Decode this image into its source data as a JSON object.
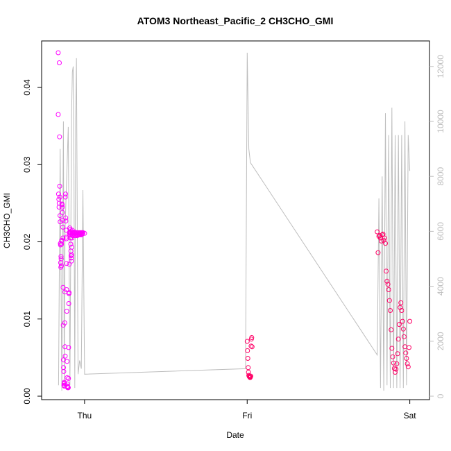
{
  "chart_data": {
    "type": "scatter",
    "title": "ATOM3 Northeast_Pacific_2 CH3CHO_GMI",
    "xlabel": "Date",
    "ylabel": "CH3CHO_GMI",
    "x_ticks": [
      {
        "label": "Thu",
        "value": 1.0
      },
      {
        "label": "Fri",
        "value": 2.0
      },
      {
        "label": "Sat",
        "value": 3.0
      }
    ],
    "xlim": [
      0.8,
      3.04
    ],
    "ylim": [
      0,
      0.0445
    ],
    "y_ticks": [
      "0.00",
      "0.01",
      "0.02",
      "0.03",
      "0.04"
    ],
    "y2lim": [
      0,
      12500
    ],
    "y2_ticks": [
      "0",
      "2000",
      "4000",
      "6000",
      "8000",
      "10000",
      "12000"
    ],
    "colors": {
      "points_early": "#ff00ff",
      "points_late": "#ff0066",
      "altitude_line": "#bdbdbd"
    },
    "series": [
      {
        "kind": "points",
        "axis": "left",
        "x": [
          0.838,
          0.838,
          0.84,
          0.842,
          0.843,
          0.844,
          0.845,
          0.846,
          0.847,
          0.848,
          0.849,
          0.85,
          0.851,
          0.852,
          0.853,
          0.854,
          0.855,
          0.856,
          0.857,
          0.858,
          0.859,
          0.86,
          0.861,
          0.862,
          0.863,
          0.864,
          0.865,
          0.866,
          0.867,
          0.868,
          0.869,
          0.87,
          0.871,
          0.872,
          0.873,
          0.874,
          0.875,
          0.876,
          0.877,
          0.878,
          0.879,
          0.88,
          0.881,
          0.882,
          0.883,
          0.884,
          0.885,
          0.886,
          0.887,
          0.888,
          0.889,
          0.89,
          0.891,
          0.892,
          0.893,
          0.894,
          0.895,
          0.896,
          0.897,
          0.898,
          0.899,
          0.9,
          0.901,
          0.902,
          0.903,
          0.904,
          0.905,
          0.906,
          0.907,
          0.908,
          0.909,
          0.91,
          0.911,
          0.912,
          0.913,
          0.914,
          0.915,
          0.916,
          0.917,
          0.918,
          0.919,
          0.92,
          0.921,
          0.922,
          0.923,
          0.924,
          0.925,
          0.926,
          0.927,
          0.928,
          0.93,
          0.932,
          0.935,
          0.938,
          0.94,
          0.942,
          0.945,
          0.948,
          0.95,
          0.952,
          0.955,
          0.958,
          0.96,
          0.962,
          0.965,
          0.968,
          0.97,
          0.972,
          0.975,
          0.978,
          0.98,
          0.982,
          0.985,
          0.988,
          0.99,
          1.0,
          2.0,
          2.002,
          2.004,
          2.006,
          2.008,
          2.01,
          2.012,
          2.014,
          2.016,
          2.018,
          2.02,
          2.022,
          2.024,
          2.026,
          2.028,
          2.03,
          2.8,
          2.805,
          2.81,
          2.815,
          2.82,
          2.825,
          2.83,
          2.835,
          2.84,
          2.845,
          2.85,
          2.855,
          2.86,
          2.865,
          2.87,
          2.875,
          2.88,
          2.885,
          2.89,
          2.895,
          2.9,
          2.905,
          2.91,
          2.915,
          2.92,
          2.925,
          2.93,
          2.935,
          2.94,
          2.945,
          2.95,
          2.955,
          2.96,
          2.965,
          2.97,
          2.975,
          2.98,
          2.985,
          2.99,
          2.995,
          3.0
        ],
        "y": [
          0.0445,
          0.0365,
          0.0262,
          0.0255,
          0.0245,
          0.025,
          0.0432,
          0.0336,
          0.0272,
          0.0258,
          0.0234,
          0.0226,
          0.0198,
          0.0196,
          0.0173,
          0.0167,
          0.0181,
          0.0178,
          0.0169,
          0.0197,
          0.0201,
          0.0202,
          0.0249,
          0.0248,
          0.0245,
          0.0238,
          0.0228,
          0.0219,
          0.0205,
          0.0141,
          0.0092,
          0.0047,
          0.0037,
          0.0032,
          0.0014,
          0.0016,
          0.0018,
          0.0013,
          0.0017,
          0.0095,
          0.0135,
          0.0064,
          0.0052,
          0.0258,
          0.0262,
          0.0231,
          0.0227,
          0.0215,
          0.0206,
          0.0204,
          0.0172,
          0.0138,
          0.011,
          0.0045,
          0.0024,
          0.0016,
          0.0013,
          0.0011,
          0.0012,
          0.0012,
          0.0011,
          0.0011,
          0.0023,
          0.0063,
          0.012,
          0.0133,
          0.0134,
          0.0171,
          0.0211,
          0.0212,
          0.0218,
          0.0209,
          0.0213,
          0.0216,
          0.0212,
          0.0205,
          0.0197,
          0.0188,
          0.0182,
          0.0179,
          0.0175,
          0.0183,
          0.0193,
          0.0205,
          0.0212,
          0.0215,
          0.0211,
          0.0209,
          0.0208,
          0.0212,
          0.0211,
          0.021,
          0.0212,
          0.0213,
          0.0211,
          0.0208,
          0.0211,
          0.0209,
          0.0212,
          0.021,
          0.0208,
          0.0211,
          0.0209,
          0.0212,
          0.021,
          0.0211,
          0.0209,
          0.0212,
          0.021,
          0.0211,
          0.0209,
          0.0212,
          0.021,
          0.0211,
          0.0212,
          0.0211,
          0.0071,
          0.0059,
          0.0049,
          0.0037,
          0.0031,
          0.0027,
          0.0026,
          0.0025,
          0.0025,
          0.0024,
          0.0025,
          0.0026,
          0.0065,
          0.0074,
          0.0076,
          0.0064,
          0.0213,
          0.0186,
          0.0207,
          0.0208,
          0.0205,
          0.0201,
          0.0209,
          0.021,
          0.0202,
          0.0205,
          0.0198,
          0.0162,
          0.0149,
          0.0145,
          0.0138,
          0.0124,
          0.0111,
          0.0086,
          0.0062,
          0.0051,
          0.0043,
          0.0036,
          0.0031,
          0.0035,
          0.0042,
          0.0055,
          0.0074,
          0.0093,
          0.0115,
          0.0121,
          0.0111,
          0.0097,
          0.0087,
          0.0077,
          0.0064,
          0.0056,
          0.0049,
          0.0042,
          0.0038,
          0.0063,
          0.0097
        ]
      },
      {
        "kind": "line",
        "axis": "right",
        "x": [
          0.84,
          0.85,
          0.86,
          0.87,
          0.875,
          0.88,
          0.9,
          0.91,
          0.92,
          0.925,
          0.93,
          0.935,
          0.94,
          0.945,
          0.95,
          0.96,
          0.97,
          0.98,
          0.99,
          1.0,
          1.99,
          2.0,
          2.01,
          2.02,
          2.8,
          2.81,
          2.82,
          2.83,
          2.84,
          2.85,
          2.86,
          2.87,
          2.88,
          2.89,
          2.9,
          2.91,
          2.92,
          2.93,
          2.94,
          2.95,
          2.96,
          2.97,
          2.98,
          2.99,
          3.0
        ],
        "y": [
          400,
          9000,
          200,
          10000,
          300,
          6000,
          9800,
          400,
          10200,
          11800,
          12000,
          8200,
          300,
          10000,
          12300,
          800,
          1300,
          1000,
          7500,
          800,
          1000,
          12500,
          9000,
          8500,
          1500,
          7200,
          300,
          8000,
          200,
          10300,
          400,
          9500,
          300,
          10500,
          300,
          9500,
          300,
          9500,
          300,
          9500,
          300,
          10000,
          400,
          9500,
          8200
        ]
      }
    ]
  }
}
